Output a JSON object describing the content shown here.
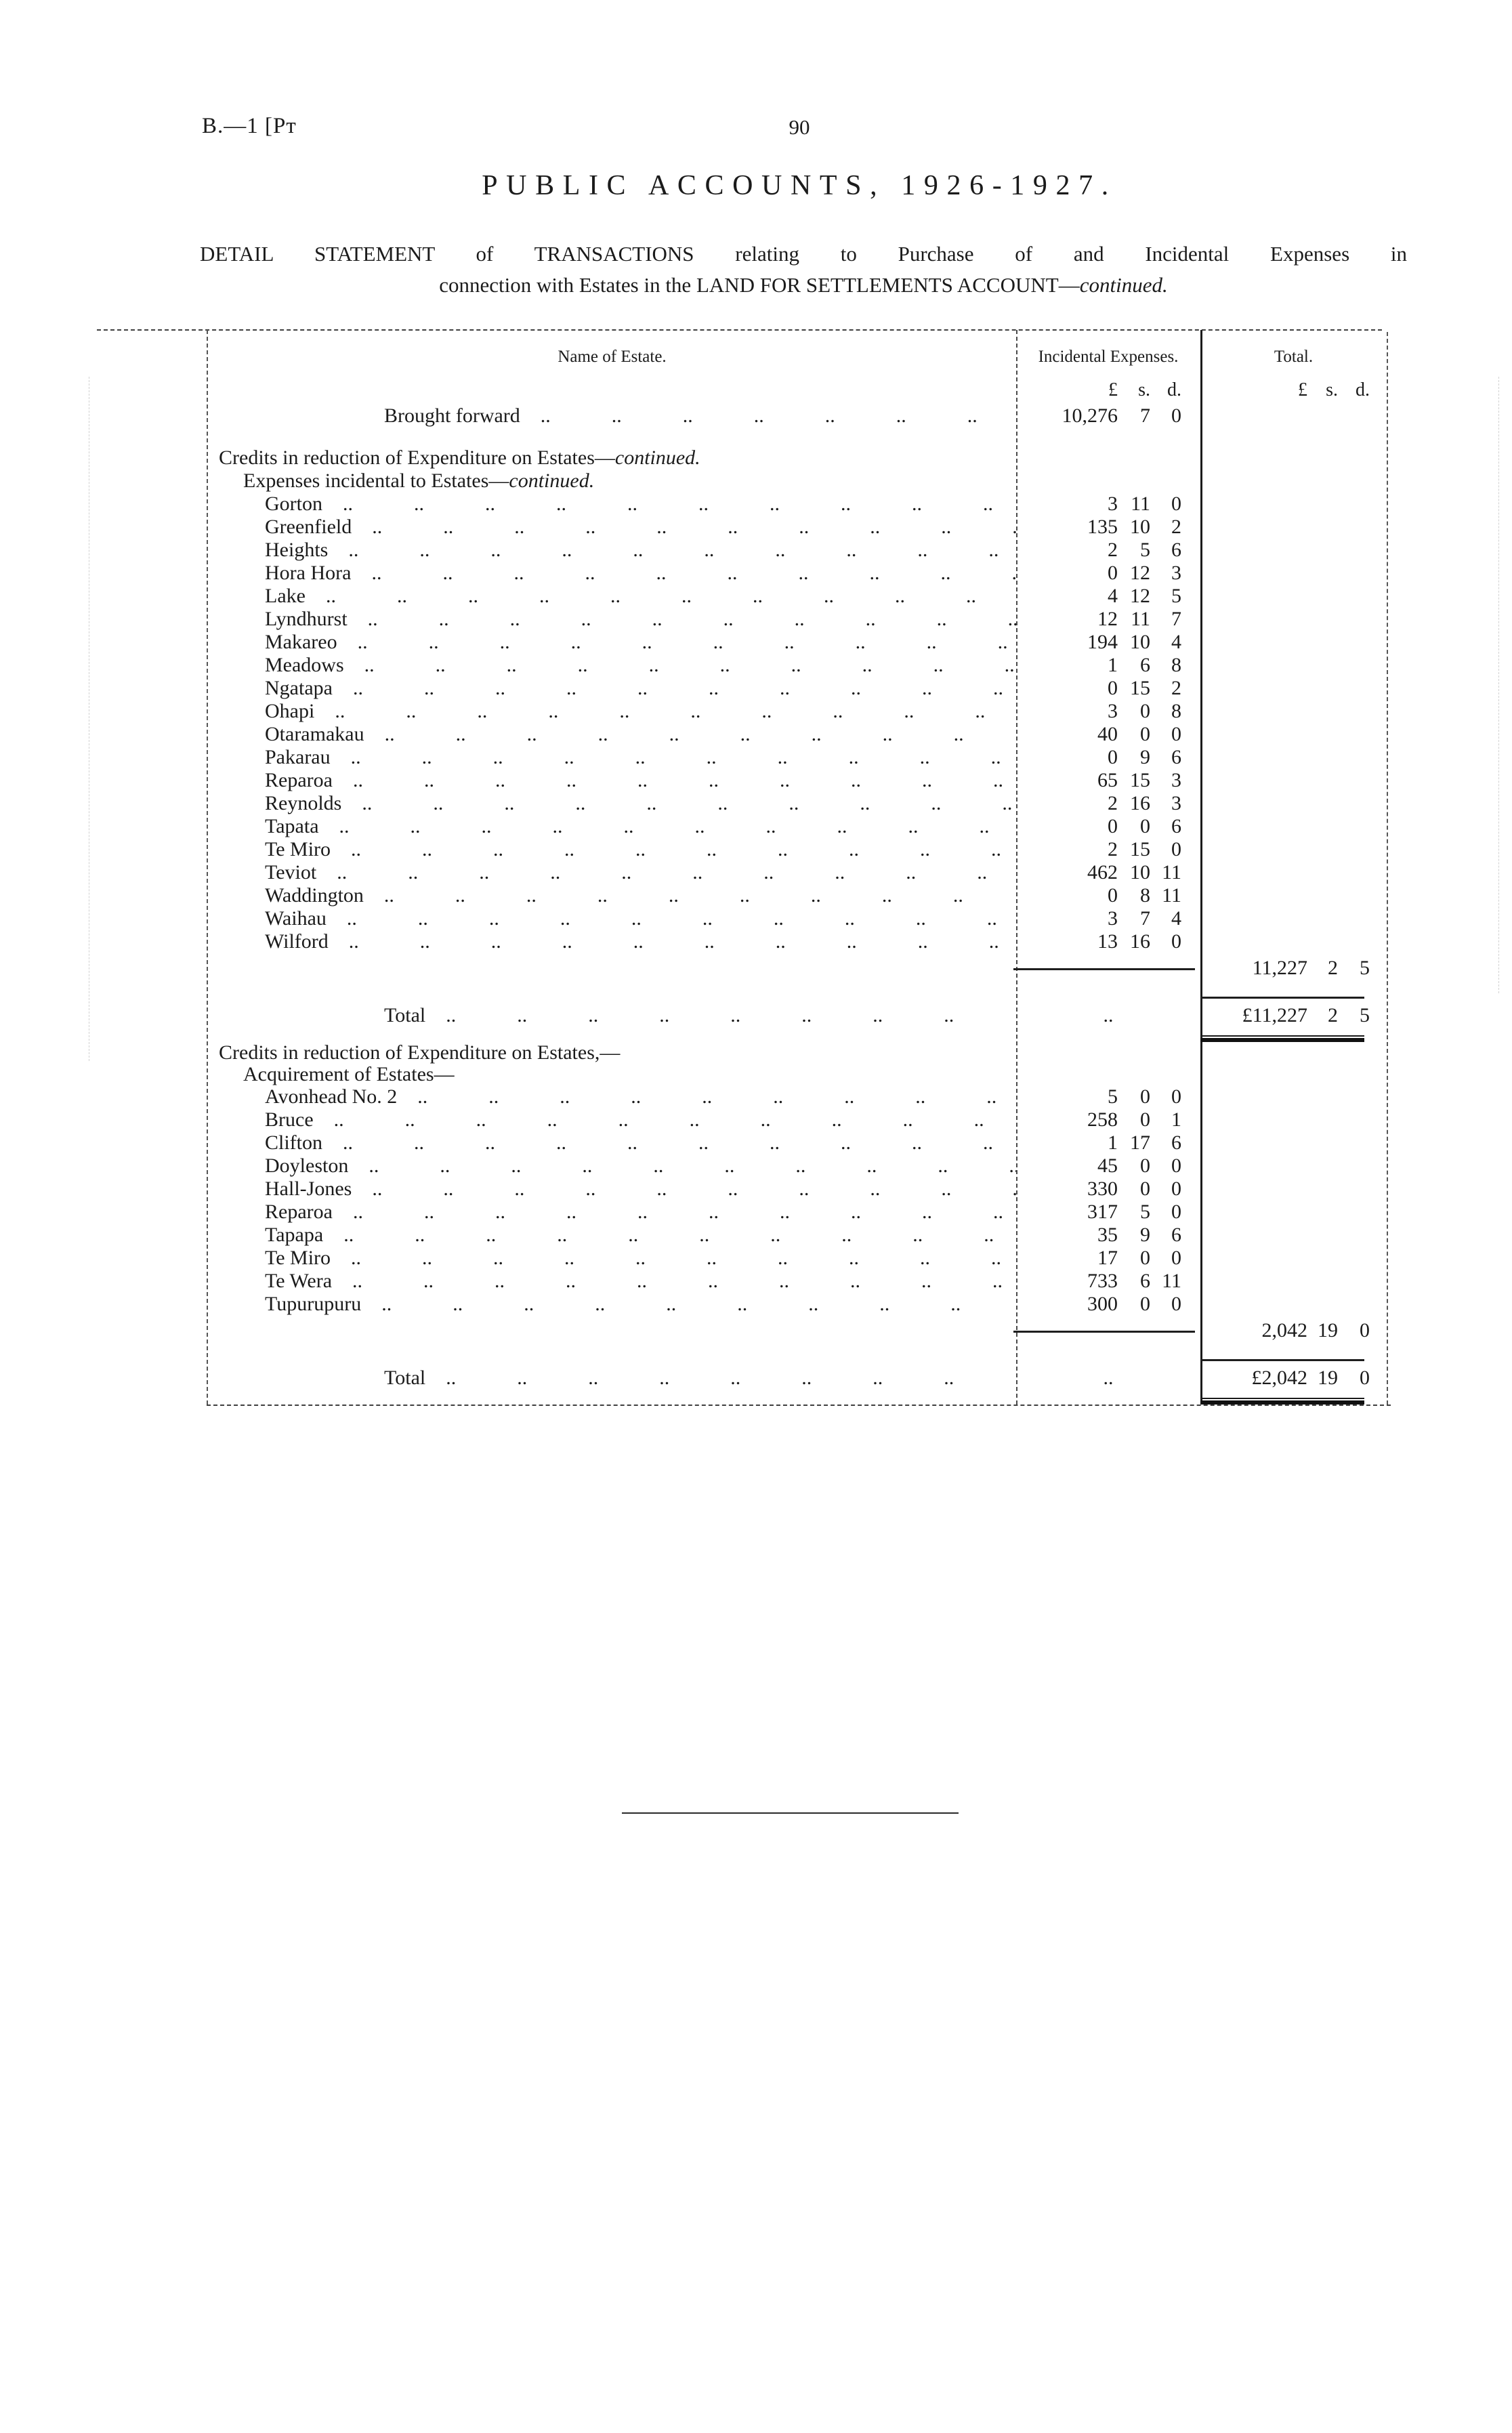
{
  "page": {
    "doc_ref": "B.—1 [Pᴛ",
    "page_number": "90",
    "title": "PUBLIC ACCOUNTS, 1926-1927.",
    "subtitle_line1": "DETAIL STATEMENT of TRANSACTIONS relating to Purchase of and Incidental Expenses in",
    "subtitle_line2": "connection with Estates in the LAND FOR SETTLEMENTS ACCOUNT—",
    "subtitle_continued": "continued."
  },
  "table": {
    "columns": {
      "name": "Name of Estate.",
      "incidental": "Incidental Expenses.",
      "total": "Total."
    },
    "units": {
      "pound": "£",
      "shilling": "s.",
      "pence": "d."
    },
    "leader_pattern": "..",
    "brought_forward": {
      "label": "Brought forward",
      "pounds": "10,276",
      "s": "7",
      "d": "0"
    },
    "sections": [
      {
        "heading": "Credits in reduction of Expenditure on Estates—",
        "heading_continued": "continued.",
        "subheading": "Expenses incidental to Estates—",
        "subheading_continued": "continued.",
        "rows": [
          {
            "name": "Gorton",
            "pounds": "3",
            "s": "11",
            "d": "0"
          },
          {
            "name": "Greenfield",
            "pounds": "135",
            "s": "10",
            "d": "2"
          },
          {
            "name": "Heights",
            "pounds": "2",
            "s": "5",
            "d": "6"
          },
          {
            "name": "Hora Hora",
            "pounds": "0",
            "s": "12",
            "d": "3"
          },
          {
            "name": "Lake",
            "pounds": "4",
            "s": "12",
            "d": "5"
          },
          {
            "name": "Lyndhurst",
            "pounds": "12",
            "s": "11",
            "d": "7"
          },
          {
            "name": "Makareo",
            "pounds": "194",
            "s": "10",
            "d": "4"
          },
          {
            "name": "Meadows",
            "pounds": "1",
            "s": "6",
            "d": "8"
          },
          {
            "name": "Ngatapa",
            "pounds": "0",
            "s": "15",
            "d": "2"
          },
          {
            "name": "Ohapi",
            "pounds": "3",
            "s": "0",
            "d": "8"
          },
          {
            "name": "Otaramakau",
            "pounds": "40",
            "s": "0",
            "d": "0"
          },
          {
            "name": "Pakarau",
            "pounds": "0",
            "s": "9",
            "d": "6"
          },
          {
            "name": "Reparoa",
            "pounds": "65",
            "s": "15",
            "d": "3"
          },
          {
            "name": "Reynolds",
            "pounds": "2",
            "s": "16",
            "d": "3"
          },
          {
            "name": "Tapata",
            "pounds": "0",
            "s": "0",
            "d": "6"
          },
          {
            "name": "Te Miro",
            "pounds": "2",
            "s": "15",
            "d": "0"
          },
          {
            "name": "Teviot",
            "pounds": "462",
            "s": "10",
            "d": "11"
          },
          {
            "name": "Waddington",
            "pounds": "0",
            "s": "8",
            "d": "11"
          },
          {
            "name": "Waihau",
            "pounds": "3",
            "s": "7",
            "d": "4"
          },
          {
            "name": "Wilford",
            "pounds": "13",
            "s": "16",
            "d": "0"
          }
        ],
        "subtotal": {
          "pounds": "11,227",
          "s": "2",
          "d": "5"
        },
        "total_label": "Total",
        "total": {
          "pounds": "£11,227",
          "s": "2",
          "d": "5"
        }
      },
      {
        "heading": "Credits in reduction of Expenditure on Estates,—",
        "heading_continued": "",
        "subheading": "Acquirement of Estates—",
        "subheading_continued": "",
        "rows": [
          {
            "name": "Avonhead No. 2",
            "pounds": "5",
            "s": "0",
            "d": "0"
          },
          {
            "name": "Bruce",
            "pounds": "258",
            "s": "0",
            "d": "1"
          },
          {
            "name": "Clifton",
            "pounds": "1",
            "s": "17",
            "d": "6"
          },
          {
            "name": "Doyleston",
            "pounds": "45",
            "s": "0",
            "d": "0"
          },
          {
            "name": "Hall-Jones",
            "pounds": "330",
            "s": "0",
            "d": "0"
          },
          {
            "name": "Reparoa",
            "pounds": "317",
            "s": "5",
            "d": "0"
          },
          {
            "name": "Tapapa",
            "pounds": "35",
            "s": "9",
            "d": "6"
          },
          {
            "name": "Te Miro",
            "pounds": "17",
            "s": "0",
            "d": "0"
          },
          {
            "name": "Te Wera",
            "pounds": "733",
            "s": "6",
            "d": "11"
          },
          {
            "name": "Tupurupuru",
            "pounds": "300",
            "s": "0",
            "d": "0"
          }
        ],
        "subtotal": {
          "pounds": "2,042",
          "s": "19",
          "d": "0"
        },
        "total_label": "Total",
        "total": {
          "pounds": "£2,042",
          "s": "19",
          "d": "0"
        }
      }
    ]
  }
}
